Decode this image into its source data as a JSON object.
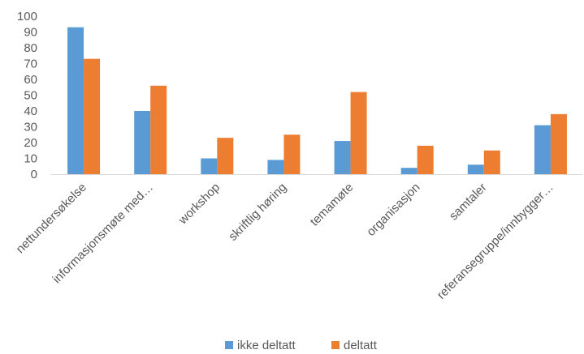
{
  "chart_data": {
    "type": "bar",
    "categories": [
      "nettundersøkelse",
      "informasjonsmøte med…",
      "workshop",
      "skriftlig høring",
      "temamøte",
      "organisasjon",
      "samtaler",
      "referansegruppe/innbygger…"
    ],
    "series": [
      {
        "name": "ikke deltatt",
        "color": "#5B9BD5",
        "values": [
          93,
          40,
          10,
          9,
          21,
          4,
          6,
          31
        ]
      },
      {
        "name": "deltatt",
        "color": "#ED7D31",
        "values": [
          73,
          56,
          23,
          25,
          52,
          18,
          15,
          38
        ]
      }
    ],
    "yticks": [
      0,
      10,
      20,
      30,
      40,
      50,
      60,
      70,
      80,
      90,
      100
    ],
    "ylim": [
      0,
      100
    ],
    "grid": false,
    "legend": "bottom"
  }
}
